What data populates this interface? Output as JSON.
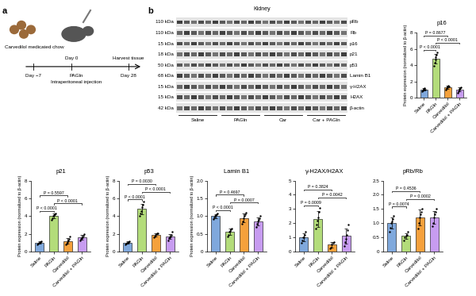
{
  "panel_labels": [
    "a",
    "b"
  ],
  "schematic": {
    "treatment": "Carvedilol medicated chow",
    "timeline": [
      "Day −7",
      "Day 0",
      "Day 28"
    ],
    "injection": [
      "PAGln",
      "Intraperitoneal injection"
    ],
    "harvest": "Harvest tissue"
  },
  "blot": {
    "title": "Kidney",
    "rows": [
      {
        "name": "pRb",
        "size": "110 kDa"
      },
      {
        "name": "Rb",
        "size": "110 kDa"
      },
      {
        "name": "p16",
        "size": "15 kDa"
      },
      {
        "name": "p21",
        "size": "18 kDa"
      },
      {
        "name": "p53",
        "size": "50 kDa"
      },
      {
        "name": "Lamin B1",
        "size": "68 kDa"
      },
      {
        "name": "γ-H2AX",
        "size": "15 kDa"
      },
      {
        "name": "H2AX",
        "size": "15 kDa"
      },
      {
        "name": "β-actin",
        "size": "42 kDa"
      }
    ],
    "groups": [
      "Saline",
      "PAGln",
      "Car",
      "Car + PAGln"
    ]
  },
  "chart_data": [
    {
      "type": "bar",
      "title": "p16",
      "y_label": "Protein expression (normalized to β-actin)",
      "categories": [
        "Saline",
        "PAGln",
        "Carvedilol",
        "Carvedilol + PAGln"
      ],
      "values": [
        1.0,
        4.8,
        1.3,
        1.0
      ],
      "errors": [
        0.15,
        0.6,
        0.18,
        0.26
      ],
      "points": [
        [
          0.8,
          0.9,
          1.0,
          1.1,
          1.2,
          1.0
        ],
        [
          3.9,
          4.3,
          4.7,
          5.0,
          5.3,
          5.6
        ],
        [
          1.0,
          1.2,
          1.3,
          1.4,
          1.5,
          1.4
        ],
        [
          0.6,
          0.8,
          1.0,
          1.1,
          1.2,
          1.3
        ]
      ],
      "colors": [
        "#7fa8dc",
        "#b3dc7a",
        "#f5a13c",
        "#c79cf0"
      ],
      "ylim": [
        0,
        8
      ],
      "yticks": [
        0,
        2,
        4,
        6,
        8
      ],
      "comparisons": [
        {
          "from": "Saline",
          "to": "PAGln",
          "label": "P < 0.0001"
        },
        {
          "from": "PAGln",
          "to": "Carvedilol + PAGln",
          "label": "P < 0.0001"
        },
        {
          "from": "Saline",
          "to": "Carvedilol",
          "label": "P = 0.8677"
        }
      ]
    },
    {
      "type": "bar",
      "title": "p21",
      "y_label": "Protein expression (normalized to β-actin)",
      "categories": [
        "Saline",
        "PAGln",
        "Carvedilol",
        "Carvedilol + PAGln"
      ],
      "values": [
        1.0,
        4.0,
        1.2,
        1.6
      ],
      "errors": [
        0.14,
        0.25,
        0.33,
        0.26
      ],
      "points": [
        [
          0.8,
          0.9,
          1.0,
          1.0,
          1.1,
          1.2
        ],
        [
          3.6,
          3.8,
          4.0,
          4.1,
          4.2,
          4.3
        ],
        [
          0.8,
          0.9,
          1.1,
          1.3,
          1.4,
          1.7
        ],
        [
          1.3,
          1.4,
          1.5,
          1.6,
          1.8,
          2.0
        ]
      ],
      "colors": [
        "#7fa8dc",
        "#b3dc7a",
        "#f5a13c",
        "#c79cf0"
      ],
      "ylim": [
        0,
        8
      ],
      "yticks": [
        0,
        2,
        4,
        6,
        8
      ],
      "comparisons": [
        {
          "from": "Saline",
          "to": "PAGln",
          "label": "P < 0.0001"
        },
        {
          "from": "PAGln",
          "to": "Carvedilol + PAGln",
          "label": "P < 0.0001"
        },
        {
          "from": "Saline",
          "to": "Carvedilol",
          "label": "P = 0.5597"
        }
      ]
    },
    {
      "type": "bar",
      "title": "p53",
      "y_label": "Protein expression (normalized to β-actin)",
      "categories": [
        "Saline",
        "PAGln",
        "Carvedilol",
        "Carvedilol + PAGln"
      ],
      "values": [
        1.0,
        4.8,
        1.9,
        1.7
      ],
      "errors": [
        0.14,
        0.6,
        0.2,
        0.3
      ],
      "points": [
        [
          0.8,
          0.9,
          1.0,
          1.0,
          1.1,
          1.2
        ],
        [
          4.0,
          4.3,
          4.6,
          5.0,
          5.3,
          5.6
        ],
        [
          1.6,
          1.7,
          1.9,
          2.0,
          2.1,
          2.1
        ],
        [
          1.3,
          1.5,
          1.6,
          1.7,
          1.9,
          2.2
        ]
      ],
      "colors": [
        "#7fa8dc",
        "#b3dc7a",
        "#f5a13c",
        "#c79cf0"
      ],
      "ylim": [
        0,
        8
      ],
      "yticks": [
        0,
        2,
        4,
        6,
        8
      ],
      "comparisons": [
        {
          "from": "Saline",
          "to": "PAGln",
          "label": "P < 0.0001"
        },
        {
          "from": "PAGln",
          "to": "Carvedilol + PAGln",
          "label": "P < 0.0001"
        },
        {
          "from": "Saline",
          "to": "Carvedilol",
          "label": "P = 0.0030"
        }
      ]
    },
    {
      "type": "bar",
      "title": "Lamin B1",
      "y_label": "Protein expression (normalized to β-actin)",
      "categories": [
        "Saline",
        "PAGln",
        "Carvedilol",
        "Carvedilol + PAGln"
      ],
      "values": [
        1.0,
        0.55,
        0.95,
        0.85
      ],
      "errors": [
        0.06,
        0.09,
        0.12,
        0.11
      ],
      "points": [
        [
          0.92,
          0.96,
          1.0,
          1.02,
          1.05,
          1.08
        ],
        [
          0.42,
          0.48,
          0.55,
          0.58,
          0.62,
          0.66
        ],
        [
          0.78,
          0.85,
          0.95,
          1.0,
          1.05,
          1.1
        ],
        [
          0.7,
          0.78,
          0.85,
          0.9,
          0.95,
          1.0
        ]
      ],
      "colors": [
        "#7fa8dc",
        "#b3dc7a",
        "#f5a13c",
        "#c79cf0"
      ],
      "ylim": [
        0,
        2.0
      ],
      "yticks": [
        0,
        0.5,
        1.0,
        1.5,
        2.0
      ],
      "comparisons": [
        {
          "from": "Saline",
          "to": "PAGln",
          "label": "P < 0.0001"
        },
        {
          "from": "PAGln",
          "to": "Carvedilol + PAGln",
          "label": "P = 0.0007"
        },
        {
          "from": "Saline",
          "to": "Carvedilol",
          "label": "P = 0.4697"
        }
      ]
    },
    {
      "type": "bar",
      "title": "γ-H2AX/H2AX",
      "categories": [
        "Saline",
        "PAGln",
        "Carvedilol",
        "Carvedilol + PAGln"
      ],
      "values": [
        1.0,
        2.3,
        0.5,
        1.1
      ],
      "errors": [
        0.28,
        0.55,
        0.2,
        0.55
      ],
      "points": [
        [
          0.6,
          0.8,
          1.0,
          1.0,
          1.2,
          1.4
        ],
        [
          1.6,
          1.9,
          2.2,
          2.4,
          2.8,
          3.1
        ],
        [
          0.2,
          0.3,
          0.5,
          0.6,
          0.7
        ],
        [
          0.4,
          0.7,
          0.9,
          1.2,
          1.5,
          1.9
        ]
      ],
      "colors": [
        "#7fa8dc",
        "#b3dc7a",
        "#f5a13c",
        "#c79cf0"
      ],
      "ylim": [
        0,
        5
      ],
      "yticks": [
        0,
        1,
        2,
        3,
        4,
        5
      ],
      "comparisons": [
        {
          "from": "Saline",
          "to": "PAGln",
          "label": "P = 0.0009"
        },
        {
          "from": "PAGln",
          "to": "Carvedilol + PAGln",
          "label": "P = 0.0042"
        },
        {
          "from": "Saline",
          "to": "Carvedilol",
          "label": "P = 0.3824"
        }
      ]
    },
    {
      "type": "bar",
      "title": "pRb/Rb",
      "categories": [
        "Saline",
        "PAGln",
        "Carvedilol",
        "Carvedilol + PAGln"
      ],
      "values": [
        1.0,
        0.55,
        1.2,
        1.2
      ],
      "errors": [
        0.2,
        0.1,
        0.27,
        0.23
      ],
      "points": [
        [
          0.7,
          0.85,
          1.0,
          1.05,
          1.15,
          1.25
        ],
        [
          0.4,
          0.5,
          0.55,
          0.6,
          0.7
        ],
        [
          0.8,
          1.0,
          1.2,
          1.3,
          1.4,
          1.5
        ],
        [
          0.9,
          1.0,
          1.2,
          1.3,
          1.4,
          1.5
        ]
      ],
      "colors": [
        "#7fa8dc",
        "#b3dc7a",
        "#f5a13c",
        "#c79cf0"
      ],
      "ylim": [
        0,
        2.5
      ],
      "yticks": [
        0,
        0.5,
        1.0,
        1.5,
        2.0,
        2.5
      ],
      "comparisons": [
        {
          "from": "Saline",
          "to": "PAGln",
          "label": "P = 0.0074"
        },
        {
          "from": "PAGln",
          "to": "Carvedilol + PAGln",
          "label": "P = 0.0002"
        },
        {
          "from": "Saline",
          "to": "Carvedilol",
          "label": "P = 0.4536"
        }
      ]
    }
  ]
}
